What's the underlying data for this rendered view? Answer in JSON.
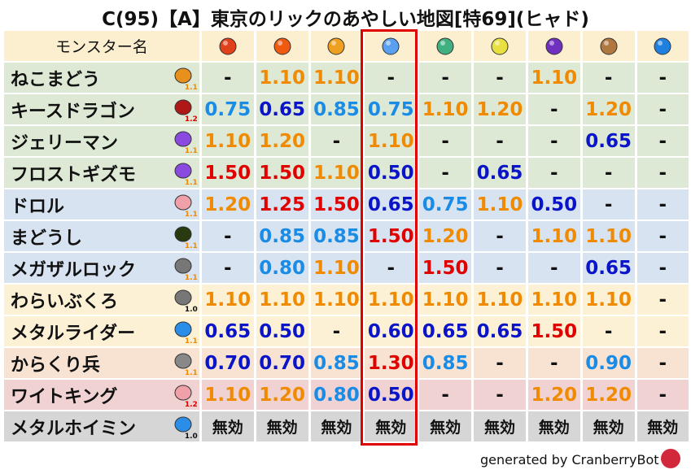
{
  "title": "C(95)【A】東京のリックのあやしい地図[特69](ヒャド)",
  "header": {
    "name_label": "モンスター名",
    "elements": [
      {
        "icon": "fireball-icon",
        "color": "#e0401a"
      },
      {
        "icon": "flame-icon",
        "color": "#f05a10"
      },
      {
        "icon": "explosion-icon",
        "color": "#f0a020"
      },
      {
        "icon": "ice-icon",
        "color": "#5aa0f0"
      },
      {
        "icon": "wind-icon",
        "color": "#40b080"
      },
      {
        "icon": "light-icon",
        "color": "#e8e040"
      },
      {
        "icon": "dark-icon",
        "color": "#7030c0"
      },
      {
        "icon": "earth-icon",
        "color": "#b07840"
      },
      {
        "icon": "water-icon",
        "color": "#2080e0"
      }
    ]
  },
  "highlighted_column": "ice",
  "rows": [
    {
      "name": "ねこまどう",
      "level": "1.1",
      "icon": "paw-icon",
      "bg": "#dde8d5",
      "values": [
        "-",
        "1.10",
        "1.10",
        "-",
        "-",
        "-",
        "1.10",
        "-",
        "-"
      ]
    },
    {
      "name": "キースドラゴン",
      "level": "1.2",
      "icon": "dragon-icon",
      "bg": "#dde8d5",
      "values": [
        "0.75",
        "0.65",
        "0.85",
        "0.75",
        "1.10",
        "1.20",
        "-",
        "1.20",
        "-"
      ]
    },
    {
      "name": "ジェリーマン",
      "level": "1.1",
      "icon": "ghost-icon",
      "bg": "#dde8d5",
      "values": [
        "1.10",
        "1.20",
        "-",
        "1.10",
        "-",
        "-",
        "-",
        "0.65",
        "-"
      ]
    },
    {
      "name": "フロストギズモ",
      "level": "1.1",
      "icon": "ghost-icon",
      "bg": "#dde8d5",
      "values": [
        "1.50",
        "1.50",
        "1.10",
        "0.50",
        "-",
        "0.65",
        "-",
        "-",
        "-"
      ]
    },
    {
      "name": "ドロル",
      "level": "1.1",
      "icon": "skull-icon",
      "bg": "#d7e3f1",
      "values": [
        "1.20",
        "1.25",
        "1.50",
        "0.65",
        "0.75",
        "1.10",
        "0.50",
        "-",
        "-"
      ]
    },
    {
      "name": "まどうし",
      "level": "1.1",
      "icon": "hood-icon",
      "bg": "#d7e3f1",
      "values": [
        "-",
        "0.85",
        "0.85",
        "1.50",
        "1.20",
        "-",
        "1.10",
        "1.10",
        "-"
      ]
    },
    {
      "name": "メガザルロック",
      "level": "1.1",
      "icon": "brick-icon",
      "bg": "#d7e3f1",
      "values": [
        "-",
        "0.80",
        "1.10",
        "-",
        "1.50",
        "-",
        "-",
        "0.65",
        "-"
      ]
    },
    {
      "name": "わらいぶくろ",
      "level": "1.0",
      "icon": "brick-icon",
      "bg": "#fcf1d5",
      "values": [
        "1.10",
        "1.10",
        "1.10",
        "1.10",
        "1.10",
        "1.10",
        "1.10",
        "1.10",
        "-"
      ]
    },
    {
      "name": "メタルライダー",
      "level": "1.1",
      "icon": "slime-icon",
      "bg": "#fcf1d5",
      "values": [
        "0.65",
        "0.50",
        "-",
        "0.60",
        "0.65",
        "0.65",
        "1.50",
        "-",
        "-"
      ]
    },
    {
      "name": "からくり兵",
      "level": "1.1",
      "icon": "gear-icon",
      "bg": "#f8e3d3",
      "values": [
        "0.70",
        "0.70",
        "0.85",
        "1.30",
        "0.85",
        "-",
        "-",
        "0.90",
        "-"
      ]
    },
    {
      "name": "ワイトキング",
      "level": "1.2",
      "icon": "skull-icon",
      "bg": "#f0d2d2",
      "values": [
        "1.10",
        "1.20",
        "0.80",
        "0.50",
        "-",
        "-",
        "1.20",
        "1.20",
        "-"
      ]
    },
    {
      "name": "メタルホイミン",
      "level": "1.0",
      "icon": "slime-icon",
      "bg": "#d6d6d6",
      "values": [
        "無効",
        "無効",
        "無効",
        "無効",
        "無効",
        "無効",
        "無効",
        "無効",
        "無効"
      ]
    }
  ],
  "footer": "generated by CranberryBot"
}
